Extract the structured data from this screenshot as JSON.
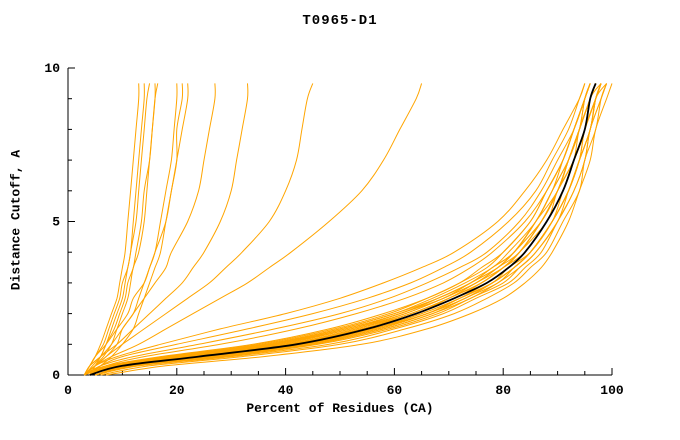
{
  "chart_data": {
    "type": "line",
    "title": "T0965-D1",
    "xlabel": "Percent of Residues (CA)",
    "ylabel": "Distance Cutoff, A",
    "xlim": [
      0,
      100
    ],
    "ylim": [
      0,
      10
    ],
    "x_major_ticks": [
      0,
      20,
      40,
      60,
      80,
      100
    ],
    "x_minor_step": 5,
    "y_major_ticks": [
      0,
      5,
      10
    ],
    "y_minor_step": 1,
    "orange_color": "#FFA500",
    "black_color": "#000000",
    "cutoffs": [
      0,
      0.3,
      0.6,
      1.0,
      1.5,
      2.0,
      2.5,
      3.0,
      3.5,
      4.0,
      5.0,
      6.0,
      7.0,
      8.0,
      9.0,
      9.5
    ],
    "orange_series": [
      [
        4,
        9,
        22,
        40,
        53,
        62,
        69,
        75,
        79,
        82,
        86,
        89,
        91,
        93,
        95,
        96
      ],
      [
        5,
        11,
        26,
        44,
        57,
        66,
        73,
        78,
        82,
        85,
        89,
        92,
        94,
        96,
        97,
        98
      ],
      [
        4,
        8,
        20,
        38,
        51,
        61,
        68,
        74,
        78,
        82,
        86,
        90,
        92,
        94,
        96,
        97
      ],
      [
        5,
        12,
        28,
        45,
        58,
        67,
        74,
        79,
        83,
        86,
        90,
        93,
        95,
        96,
        98,
        99
      ],
      [
        3,
        7,
        18,
        35,
        49,
        59,
        66,
        72,
        77,
        80,
        85,
        88,
        91,
        93,
        95,
        96
      ],
      [
        4,
        10,
        23,
        41,
        54,
        63,
        70,
        76,
        80,
        83,
        87,
        90,
        92,
        94,
        96,
        97
      ],
      [
        5,
        11,
        25,
        43,
        56,
        65,
        72,
        77,
        81,
        84,
        88,
        91,
        93,
        95,
        97,
        98
      ],
      [
        4,
        9,
        21,
        39,
        52,
        62,
        69,
        75,
        79,
        83,
        87,
        90,
        93,
        95,
        96,
        97
      ],
      [
        5,
        12,
        27,
        44,
        57,
        66,
        72,
        78,
        82,
        85,
        89,
        92,
        94,
        95,
        97,
        98
      ],
      [
        3,
        8,
        19,
        36,
        50,
        60,
        67,
        73,
        78,
        81,
        86,
        89,
        92,
        94,
        95,
        96
      ],
      [
        4,
        10,
        24,
        42,
        55,
        64,
        71,
        76,
        80,
        84,
        88,
        91,
        93,
        94,
        96,
        97
      ],
      [
        5,
        13,
        29,
        46,
        59,
        68,
        74,
        80,
        83,
        86,
        90,
        92,
        94,
        96,
        97,
        98
      ],
      [
        4,
        9,
        22,
        40,
        53,
        63,
        70,
        75,
        80,
        83,
        87,
        90,
        92,
        94,
        96,
        97
      ],
      [
        5,
        11,
        26,
        43,
        56,
        65,
        72,
        78,
        81,
        85,
        89,
        91,
        93,
        95,
        97,
        98
      ],
      [
        4,
        8,
        20,
        37,
        50,
        60,
        68,
        74,
        78,
        82,
        86,
        89,
        92,
        94,
        95,
        96
      ],
      [
        3,
        7,
        17,
        34,
        48,
        58,
        66,
        72,
        76,
        80,
        85,
        88,
        91,
        93,
        95,
        96
      ],
      [
        5,
        12,
        27,
        45,
        58,
        67,
        73,
        79,
        82,
        85,
        89,
        92,
        94,
        96,
        97,
        99
      ],
      [
        4,
        10,
        23,
        41,
        54,
        64,
        70,
        76,
        80,
        83,
        88,
        90,
        93,
        95,
        96,
        97
      ],
      [
        4,
        9,
        21,
        38,
        52,
        61,
        69,
        74,
        79,
        82,
        87,
        90,
        92,
        94,
        96,
        97
      ],
      [
        5,
        11,
        25,
        43,
        56,
        66,
        72,
        78,
        82,
        85,
        89,
        92,
        94,
        95,
        97,
        98
      ],
      [
        4,
        10,
        24,
        41,
        54,
        64,
        70,
        76,
        80,
        83,
        87,
        90,
        93,
        95,
        96,
        98
      ],
      [
        5,
        12,
        26,
        44,
        57,
        66,
        73,
        78,
        82,
        85,
        89,
        92,
        94,
        96,
        97,
        98
      ],
      [
        4,
        8,
        19,
        37,
        51,
        61,
        68,
        74,
        79,
        82,
        87,
        90,
        92,
        94,
        96,
        97
      ],
      [
        3,
        6,
        12,
        24,
        38,
        50,
        59,
        66,
        72,
        77,
        83,
        87,
        90,
        93,
        95,
        96
      ],
      [
        3,
        6,
        10,
        20,
        33,
        45,
        55,
        63,
        69,
        74,
        81,
        86,
        89,
        92,
        94,
        95
      ],
      [
        4,
        7,
        14,
        28,
        42,
        53,
        62,
        69,
        74,
        78,
        84,
        88,
        91,
        93,
        95,
        96
      ],
      [
        3,
        5,
        9,
        17,
        28,
        40,
        50,
        58,
        65,
        71,
        79,
        84,
        88,
        91,
        94,
        95
      ],
      [
        6,
        15,
        32,
        50,
        62,
        71,
        77,
        82,
        85,
        88,
        91,
        94,
        95,
        97,
        98,
        99
      ],
      [
        7,
        18,
        36,
        54,
        66,
        74,
        80,
        84,
        87,
        89,
        92,
        94,
        96,
        97,
        99,
        100
      ],
      [
        5,
        13,
        30,
        48,
        60,
        69,
        75,
        81,
        84,
        87,
        90,
        93,
        95,
        96,
        98,
        99
      ],
      [
        3,
        5,
        8,
        13,
        18,
        23,
        28,
        33,
        37,
        41,
        48,
        54,
        58,
        61,
        64,
        65
      ],
      [
        3,
        5,
        7,
        10,
        14,
        18,
        22,
        26,
        29,
        32,
        37,
        40,
        42,
        43,
        44,
        45
      ],
      [
        3,
        4,
        6,
        9,
        12,
        15,
        18,
        21,
        23,
        25,
        28,
        30,
        31,
        32,
        33,
        33
      ],
      [
        3,
        4,
        6,
        8,
        10,
        12,
        14,
        16,
        18,
        19,
        22,
        24,
        25,
        26,
        27,
        27
      ],
      [
        3,
        4,
        5,
        7,
        9,
        11,
        12,
        14,
        15,
        16,
        18,
        19,
        20,
        20,
        21,
        21
      ],
      [
        3,
        4,
        5,
        6,
        7,
        8,
        9,
        9.5,
        10,
        10.5,
        11,
        11.5,
        12,
        12.5,
        13,
        13
      ],
      [
        4,
        5,
        6,
        7,
        8,
        9,
        10,
        10.5,
        11,
        11.5,
        12,
        12.5,
        13,
        13.5,
        14,
        14
      ],
      [
        3,
        4,
        5,
        6.5,
        7.5,
        8.5,
        9.5,
        10,
        11,
        11.5,
        12.5,
        13,
        13.5,
        14,
        14.5,
        15
      ],
      [
        4,
        5,
        6.5,
        8,
        9,
        10,
        11,
        11.5,
        12,
        13,
        14,
        14.5,
        15,
        15.5,
        16,
        16
      ],
      [
        3,
        4.5,
        6,
        7,
        8.5,
        9.5,
        10.5,
        11,
        12,
        12.5,
        13.5,
        14,
        15,
        15.5,
        16,
        16.5
      ],
      [
        4,
        6,
        8,
        10,
        12,
        13,
        14,
        15,
        16,
        17,
        18,
        19,
        20,
        21,
        22,
        22
      ],
      [
        3,
        5,
        7,
        9,
        10,
        12,
        13,
        14,
        15,
        16,
        17,
        18,
        19,
        19.5,
        20,
        20
      ]
    ],
    "black_series": [
      4,
      10,
      24,
      42,
      55,
      64,
      71,
      77,
      81,
      84,
      88,
      91,
      93,
      95,
      96,
      97
    ]
  }
}
